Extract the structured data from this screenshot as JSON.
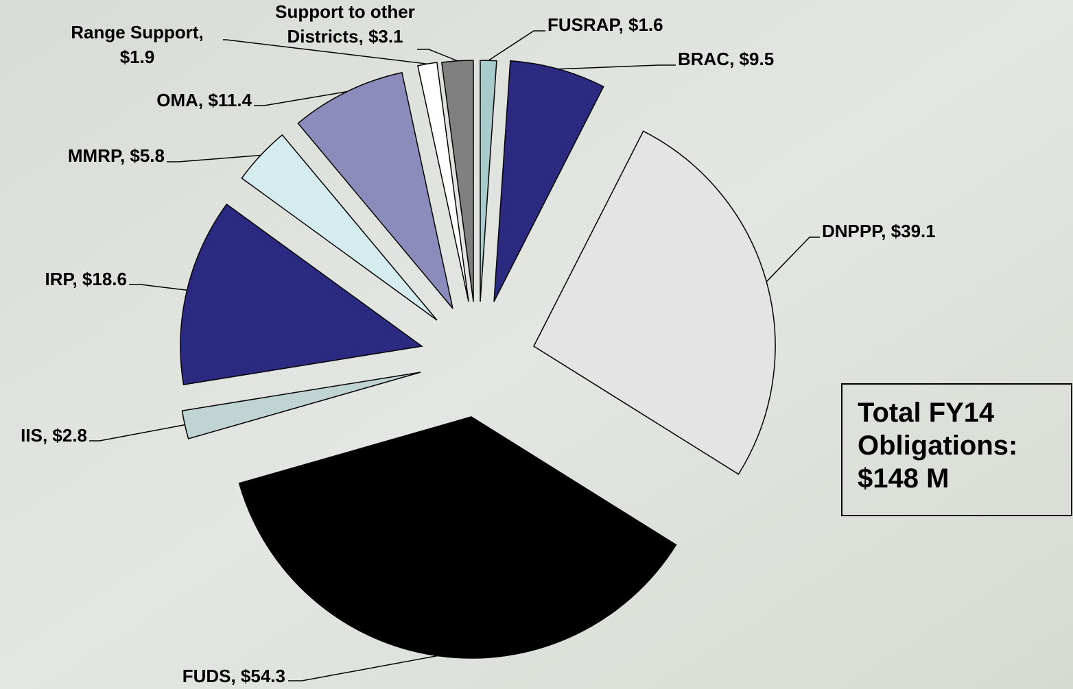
{
  "chart_data": {
    "type": "pie",
    "labels": [
      "FUSRAP, $1.6",
      "BRAC, $9.5",
      "DNPPP, $39.1",
      "FUDS, $54.3",
      "IIS, $2.8",
      "IRP, $18.6",
      "MMRP, $5.8",
      "OMA, $11.4",
      "Range Support,\n$1.9",
      "Support to other\nDistricts, $3.1"
    ],
    "values": [
      1.6,
      9.5,
      39.1,
      54.3,
      2.8,
      18.6,
      5.8,
      11.4,
      1.9,
      3.1
    ],
    "colors": [
      "#a8cccc",
      "#2a2a80",
      "#e4e4e4",
      "#000000",
      "#c0d4d4",
      "#2a2a80",
      "#d4ecee",
      "#8c8cbc",
      "#ffffff",
      "#808080"
    ],
    "annotation": "Total FY14\nObligations:\n$148 M"
  }
}
